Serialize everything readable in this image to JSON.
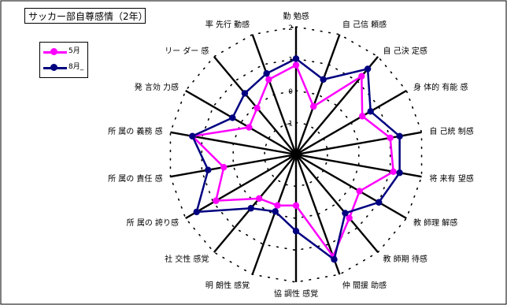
{
  "title": "サッカー部自尊感情（2年）",
  "legend": [
    {
      "name": "5月",
      "color": "#ff00ff"
    },
    {
      "name": "8月_",
      "color": "#000080"
    }
  ],
  "chart_data": {
    "type": "radar",
    "axes": [
      "勤 勉感",
      "自 己信 頼感",
      "自 己決 定感",
      "身 体的 有能 感",
      "自 己統 制感",
      "将 来有 望感",
      "教 師理 解感",
      "教 師期 待感",
      "仲 間援 助感",
      "協 調性 感覚",
      "明 朗性 感覚",
      "社 交性 感覚",
      "所 属の 誇り感",
      "所 属の 責任 感",
      "所 属の 義務 感",
      "発 言効 力感",
      "リー ダー 感",
      "率 先行 動感"
    ],
    "tick_labels": [
      "-2",
      "-1",
      "0",
      "1",
      "2"
    ],
    "range": [
      -2,
      2
    ],
    "series": [
      {
        "name": "5月",
        "color": "#ff00ff",
        "values": [
          0.8,
          -0.4,
          1.2,
          0.4,
          1.0,
          1.1,
          0.3,
          0.6,
          1.4,
          -0.4,
          -0.3,
          -0.2,
          0.9,
          0.3,
          1.3,
          -0.3,
          -0.1,
          0.5
        ]
      },
      {
        "name": "8月_",
        "color": "#000080",
        "values": [
          1.0,
          0.5,
          1.5,
          0.7,
          1.3,
          1.3,
          1.0,
          0.4,
          1.5,
          0.4,
          -0.1,
          0.2,
          1.6,
          0.8,
          1.3,
          0.3,
          0.5,
          0.7
        ]
      }
    ]
  }
}
